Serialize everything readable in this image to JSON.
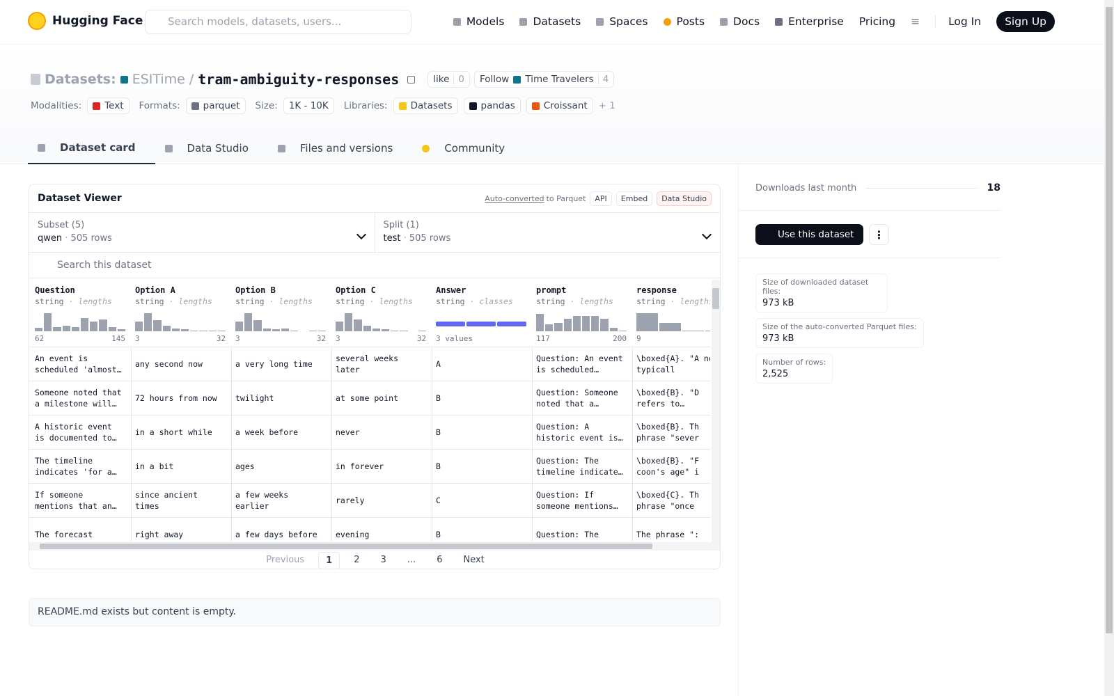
{
  "nav": {
    "logo": "Hugging Face",
    "search_placeholder": "Search models, datasets, users...",
    "links": [
      "Models",
      "Datasets",
      "Spaces",
      "Posts",
      "Docs",
      "Enterprise",
      "Pricing"
    ],
    "login": "Log In",
    "signup": "Sign Up"
  },
  "header": {
    "prefix": "Datasets:",
    "owner": "ESITime",
    "separator": "/",
    "name": "tram-ambiguity-responses",
    "like": "like",
    "like_count": "0",
    "follow": "Follow",
    "org": "Time Travelers",
    "follow_count": "4",
    "tags": [
      {
        "label": "Modalities:",
        "items": [
          "Text"
        ]
      },
      {
        "label": "Formats:",
        "items": [
          "parquet"
        ]
      },
      {
        "label": "Size:",
        "items": [
          "1K - 10K"
        ]
      },
      {
        "label": "Libraries:",
        "items": [
          "Datasets",
          "pandas",
          "Croissant"
        ]
      }
    ],
    "more": "+ 1"
  },
  "tabs": [
    "Dataset card",
    "Data Studio",
    "Files and versions",
    "Community"
  ],
  "viewer": {
    "title": "Dataset Viewer",
    "auto_converted": "Auto-converted",
    "to_parquet": "to Parquet",
    "buttons": [
      "API",
      "Embed",
      "Data Studio"
    ],
    "dot": "·",
    "subset_label": "Subset (5)",
    "subset_value": "qwen",
    "subset_rows": "505 rows",
    "split_label": "Split (1)",
    "split_value": "test",
    "split_rows": "505 rows",
    "search": "Search this dataset",
    "columns": [
      {
        "name": "Question",
        "type": "string",
        "stat": "lengths",
        "min": 62,
        "max": 145,
        "hist": [
          0.2,
          1,
          0.25,
          0.3,
          0.25,
          0.75,
          0.55,
          0.65,
          0.25,
          0.1
        ]
      },
      {
        "name": "Option A",
        "type": "string",
        "stat": "lengths",
        "min": 3,
        "max": 32,
        "hist": [
          0.55,
          1,
          0.6,
          0.3,
          0.15,
          0.1,
          0.05,
          0.05,
          0.05,
          0.05
        ]
      },
      {
        "name": "Option B",
        "type": "string",
        "stat": "lengths",
        "min": 3,
        "max": 32,
        "hist": [
          0.55,
          1,
          0.6,
          0.15,
          0.1,
          0.15,
          0.05,
          0,
          0.05,
          0.05
        ]
      },
      {
        "name": "Option C",
        "type": "string",
        "stat": "lengths",
        "min": 3,
        "max": 32,
        "hist": [
          0.55,
          1,
          0.65,
          0.3,
          0.15,
          0.1,
          0.05,
          0.05,
          0,
          0.05
        ]
      },
      {
        "name": "Answer",
        "type": "string",
        "stat": "classes",
        "summary": "3 values",
        "classes": [
          1,
          1,
          1
        ]
      },
      {
        "name": "prompt",
        "type": "string",
        "stat": "lengths",
        "min": 117,
        "max": 200,
        "hist": [
          0.95,
          0.4,
          0.45,
          0.7,
          0.85,
          0.85,
          0.85,
          0.7,
          0.2,
          0.05
        ]
      },
      {
        "name": "response",
        "type": "string",
        "stat": "lengths",
        "min": 9,
        "hist": [
          1,
          0.45,
          0.05,
          0.05
        ]
      }
    ],
    "rows": [
      [
        "An event is scheduled 'almost…",
        "any second now",
        "a very long time",
        "several weeks later",
        "A",
        "Question: An event is scheduled…",
        "\\boxed{A}. \"A now\" typicall"
      ],
      [
        "Someone noted that a milestone will…",
        "72 hours from now",
        "twilight",
        "at some point",
        "B",
        "Question: Someone noted that a…",
        "\\boxed{B}. \"D refers to…"
      ],
      [
        "A historic event is documented to…",
        "in a short while",
        "a week before",
        "never",
        "B",
        "Question: A historic event is…",
        "\\boxed{B}. Th phrase \"sever"
      ],
      [
        "The timeline indicates 'for a…",
        "in a bit",
        "ages",
        "in forever",
        "B",
        "Question: The timeline indicate…",
        "\\boxed{B}. \"F coon's age\" i"
      ],
      [
        "If someone mentions that an…",
        "since ancient times",
        "a few weeks earlier",
        "rarely",
        "C",
        "Question: If someone mentions…",
        "\\boxed{C}. Th phrase \"once"
      ],
      [
        "The forecast",
        "right away",
        "a few days before",
        "evening",
        "B",
        "Question: The",
        "The phrase \":"
      ]
    ],
    "pagination": [
      "Previous",
      "1",
      "2",
      "3",
      "...",
      "6",
      "Next"
    ]
  },
  "readme": "README.md exists but content is empty.",
  "sidebar": {
    "downloads_label": "Downloads last month",
    "downloads": "18",
    "use_button": "Use this dataset",
    "stats": [
      {
        "label": "Size of downloaded dataset files:",
        "value": "973 kB"
      },
      {
        "label": "Size of the auto-converted Parquet files:",
        "value": "973 kB"
      },
      {
        "label": "Number of rows:",
        "value": "2,525"
      }
    ]
  }
}
